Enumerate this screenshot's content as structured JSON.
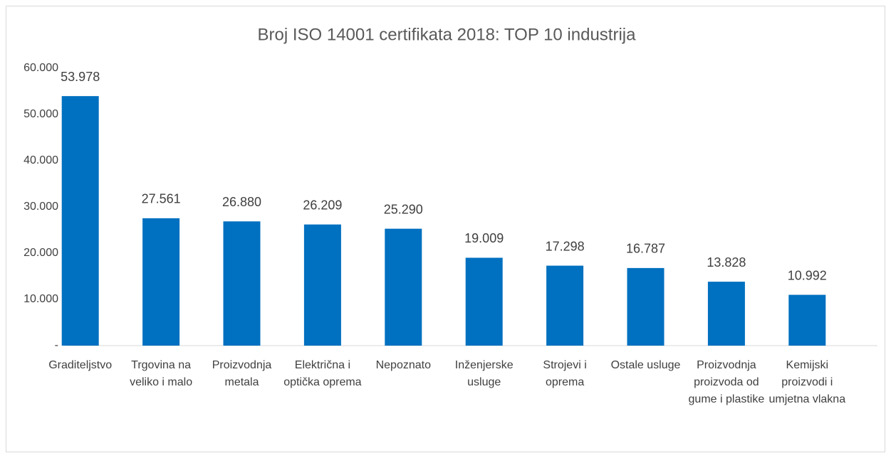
{
  "chart_data": {
    "type": "bar",
    "title": "Broj ISO 14001 certifikata 2018: TOP 10 industrija",
    "categories": [
      "Graditeljstvo",
      "Trgovina na veliko i malo",
      "Proizvodnja metala",
      "Električna i optička oprema",
      "Nepoznato",
      "Inženjerske usluge",
      "Strojevi i oprema",
      "Ostale usluge",
      "Proizvodnja proizvoda od gume i plastike",
      "Kemijski proizvodi i umjetna vlakna"
    ],
    "values": [
      53978,
      27561,
      26880,
      26209,
      25290,
      19009,
      17298,
      16787,
      13828,
      10992
    ],
    "value_labels": [
      "53.978",
      "27.561",
      "26.880",
      "26.209",
      "25.290",
      "19.009",
      "17.298",
      "16.787",
      "13.828",
      "10.992"
    ],
    "color": "#0070c0",
    "ylim": [
      0,
      60000
    ],
    "yticks": [
      {
        "value": 0,
        "label": "-"
      },
      {
        "value": 10000,
        "label": "10.000"
      },
      {
        "value": 20000,
        "label": "20.000"
      },
      {
        "value": 30000,
        "label": "30.000"
      },
      {
        "value": 40000,
        "label": "40.000"
      },
      {
        "value": 50000,
        "label": "50.000"
      },
      {
        "value": 60000,
        "label": "60.000"
      }
    ],
    "grid": false
  }
}
